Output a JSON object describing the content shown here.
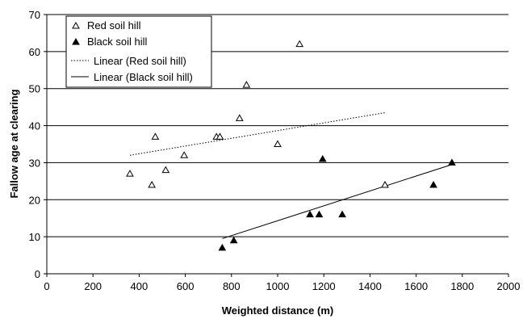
{
  "chart_data": {
    "type": "scatter",
    "xlabel": "Weighted distance (m)",
    "ylabel": "Fallow age at clearing",
    "xlim": [
      0,
      2000
    ],
    "ylim": [
      0,
      70
    ],
    "xticks": [
      0,
      200,
      400,
      600,
      800,
      1000,
      1200,
      1400,
      1600,
      1800,
      2000
    ],
    "yticks": [
      0,
      10,
      20,
      30,
      40,
      50,
      60,
      70
    ],
    "grid": "horizontal",
    "legend_position": "top-left",
    "series": [
      {
        "name": "Red soil hill",
        "marker": "open-triangle",
        "color": "#000000",
        "points": [
          {
            "x": 360,
            "y": 27
          },
          {
            "x": 455,
            "y": 24
          },
          {
            "x": 470,
            "y": 37
          },
          {
            "x": 515,
            "y": 28
          },
          {
            "x": 595,
            "y": 32
          },
          {
            "x": 735,
            "y": 37
          },
          {
            "x": 750,
            "y": 37
          },
          {
            "x": 835,
            "y": 42
          },
          {
            "x": 865,
            "y": 51
          },
          {
            "x": 1000,
            "y": 35
          },
          {
            "x": 1095,
            "y": 62
          },
          {
            "x": 1465,
            "y": 24
          }
        ]
      },
      {
        "name": "Black soil hill",
        "marker": "filled-triangle",
        "color": "#000000",
        "points": [
          {
            "x": 760,
            "y": 7
          },
          {
            "x": 810,
            "y": 9
          },
          {
            "x": 1140,
            "y": 16
          },
          {
            "x": 1180,
            "y": 16
          },
          {
            "x": 1195,
            "y": 31
          },
          {
            "x": 1280,
            "y": 16
          },
          {
            "x": 1675,
            "y": 24
          },
          {
            "x": 1755,
            "y": 30
          }
        ]
      }
    ],
    "trendlines": [
      {
        "name": "Linear (Red soil hill)",
        "style": "dotted",
        "x": [
          360,
          1465
        ],
        "y": [
          32,
          43.5
        ]
      },
      {
        "name": "Linear (Black soil hill)",
        "style": "solid",
        "x": [
          760,
          1755
        ],
        "y": [
          9.5,
          29.5
        ]
      }
    ]
  }
}
